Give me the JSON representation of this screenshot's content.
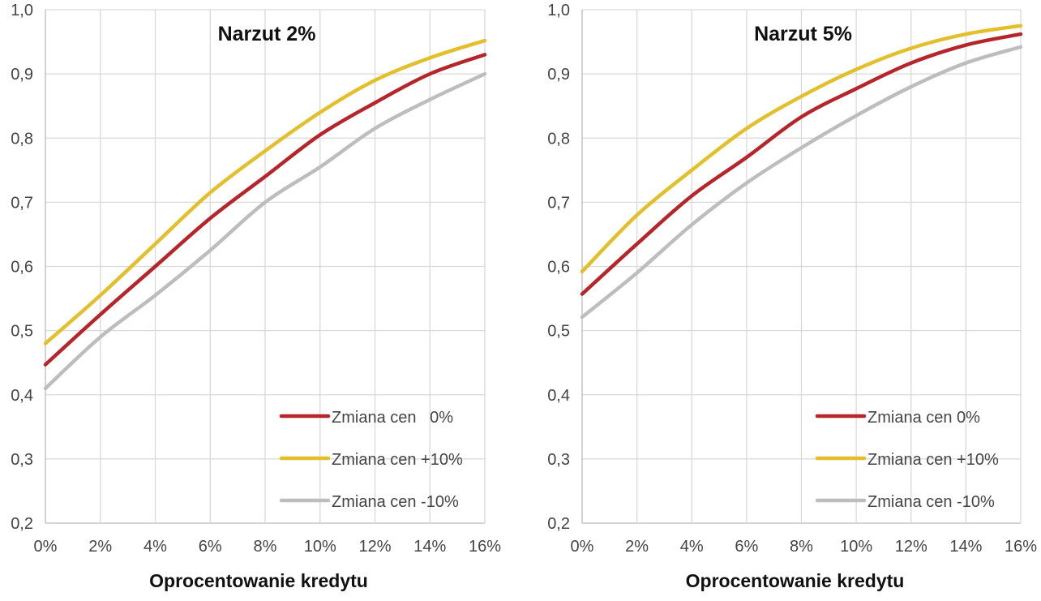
{
  "chart_data": [
    {
      "type": "line",
      "title": "Narzut 2%",
      "xlabel": "Oprocentowanie kredytu",
      "ylabel": "",
      "x": [
        0,
        2,
        4,
        6,
        8,
        10,
        12,
        14,
        16
      ],
      "x_tick_labels": [
        "0%",
        "2%",
        "4%",
        "6%",
        "8%",
        "10%",
        "12%",
        "14%",
        "16%"
      ],
      "xlim": [
        0,
        16
      ],
      "ylim": [
        0.2,
        1.0
      ],
      "y_ticks": [
        0.2,
        0.3,
        0.4,
        0.5,
        0.6,
        0.7,
        0.8,
        0.9,
        1.0
      ],
      "y_tick_labels": [
        "0,2",
        "0,3",
        "0,4",
        "0,5",
        "0,6",
        "0,7",
        "0,8",
        "0,9",
        "1,0"
      ],
      "grid": true,
      "legend_position": "bottom-right",
      "series": [
        {
          "name": "Zmiana cen   0%",
          "color": "#b5252a",
          "values": [
            0.447,
            0.525,
            0.6,
            0.675,
            0.74,
            0.805,
            0.855,
            0.9,
            0.93
          ]
        },
        {
          "name": "Zmiana cen +10%",
          "color": "#e2bf2b",
          "values": [
            0.48,
            0.555,
            0.635,
            0.715,
            0.78,
            0.84,
            0.89,
            0.925,
            0.952
          ]
        },
        {
          "name": "Zmiana cen -10%",
          "color": "#bdbdbd",
          "values": [
            0.41,
            0.49,
            0.555,
            0.625,
            0.7,
            0.755,
            0.815,
            0.86,
            0.9
          ]
        }
      ]
    },
    {
      "type": "line",
      "title": "Narzut 5%",
      "xlabel": "Oprocentowanie kredytu",
      "ylabel": "",
      "x": [
        0,
        2,
        4,
        6,
        8,
        10,
        12,
        14,
        16
      ],
      "x_tick_labels": [
        "0%",
        "2%",
        "4%",
        "6%",
        "8%",
        "10%",
        "12%",
        "14%",
        "16%"
      ],
      "xlim": [
        0,
        16
      ],
      "ylim": [
        0.2,
        1.0
      ],
      "y_ticks": [
        0.2,
        0.3,
        0.4,
        0.5,
        0.6,
        0.7,
        0.8,
        0.9,
        1.0
      ],
      "y_tick_labels": [
        "0,2",
        "0,3",
        "0,4",
        "0,5",
        "0,6",
        "0,7",
        "0,8",
        "0,9",
        "1,0"
      ],
      "grid": true,
      "legend_position": "bottom-right",
      "series": [
        {
          "name": "Zmiana cen 0%",
          "color": "#b5252a",
          "values": [
            0.557,
            0.635,
            0.71,
            0.77,
            0.833,
            0.877,
            0.917,
            0.945,
            0.962
          ]
        },
        {
          "name": "Zmiana cen +10%",
          "color": "#e2bf2b",
          "values": [
            0.592,
            0.68,
            0.75,
            0.815,
            0.865,
            0.907,
            0.94,
            0.962,
            0.975
          ]
        },
        {
          "name": "Zmiana cen -10%",
          "color": "#bdbdbd",
          "values": [
            0.521,
            0.59,
            0.665,
            0.73,
            0.785,
            0.835,
            0.88,
            0.917,
            0.942
          ]
        }
      ]
    }
  ]
}
